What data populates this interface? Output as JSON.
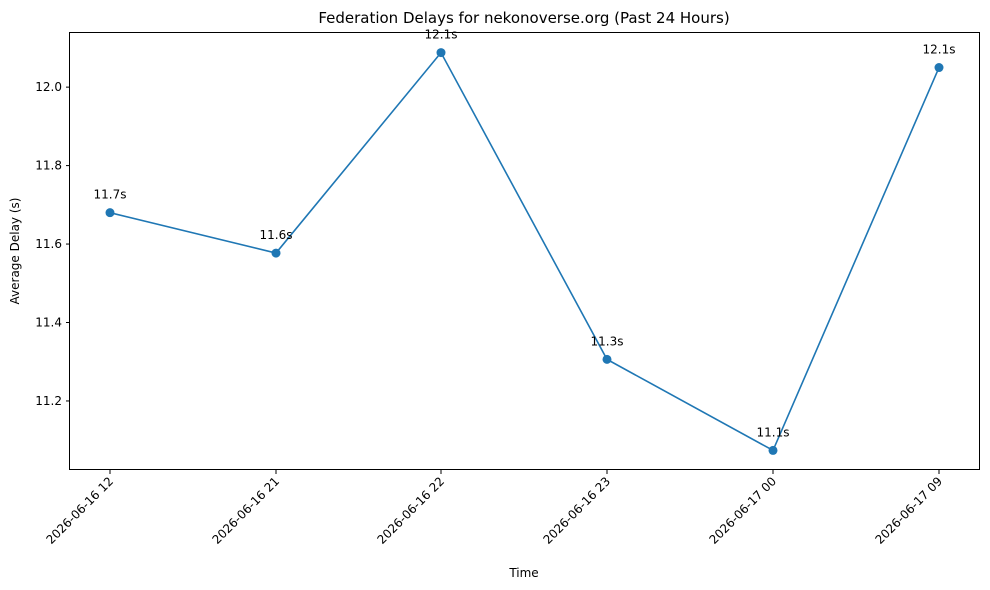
{
  "chart_data": {
    "type": "line",
    "title": "Federation Delays for nekonoverse.org (Past 24 Hours)",
    "xlabel": "Time",
    "ylabel": "Average Delay (s)",
    "categories": [
      "2026-06-16 12",
      "2026-06-16 21",
      "2026-06-16 22",
      "2026-06-16 23",
      "2026-06-17 00",
      "2026-06-17 09"
    ],
    "series": [
      {
        "values": [
          11.68,
          11.577,
          12.088,
          11.306,
          11.074,
          12.05
        ],
        "labels": [
          "11.7s",
          "11.6s",
          "12.1s",
          "11.3s",
          "11.1s",
          "12.1s"
        ],
        "color": "#1f77b4",
        "marker": "circle"
      }
    ],
    "yticks": [
      11.2,
      11.4,
      11.6,
      11.8,
      12.0
    ],
    "ytick_labels": [
      "11.2",
      "11.4",
      "11.6",
      "11.8",
      "12.0"
    ],
    "ylim": [
      11.024,
      12.138
    ],
    "grid": false,
    "legend": "none"
  }
}
